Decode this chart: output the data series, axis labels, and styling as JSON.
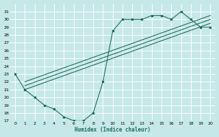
{
  "xlabel": "Humidex (Indice chaleur)",
  "ylabel": "",
  "bg_color": "#c6e8e8",
  "line_color": "#1a6b5a",
  "grid_color": "#ffffff",
  "xlim": [
    -0.5,
    20.5
  ],
  "ylim": [
    17,
    32
  ],
  "yticks": [
    17,
    18,
    19,
    20,
    21,
    22,
    23,
    24,
    25,
    26,
    27,
    28,
    29,
    30,
    31
  ],
  "xticks": [
    0,
    1,
    2,
    3,
    4,
    5,
    6,
    7,
    8,
    9,
    10,
    11,
    12,
    13,
    14,
    15,
    16,
    17,
    18,
    19,
    20
  ],
  "curve1_x": [
    0,
    1,
    2,
    3,
    4,
    5,
    6,
    7,
    8,
    9,
    10,
    11,
    12,
    13,
    14,
    15,
    16,
    17,
    18,
    19,
    20
  ],
  "curve1_y": [
    23,
    21,
    20,
    19,
    18.5,
    17.5,
    17,
    17,
    18,
    22,
    28.5,
    30,
    30,
    30,
    30.5,
    30.5,
    30,
    31,
    30,
    29,
    29
  ],
  "curve2_x": [
    1,
    20
  ],
  "curve2_y": [
    21,
    29.5
  ],
  "curve3_x": [
    1,
    20
  ],
  "curve3_y": [
    21.5,
    30
  ],
  "curve4_x": [
    1,
    20
  ],
  "curve4_y": [
    22,
    30.5
  ]
}
